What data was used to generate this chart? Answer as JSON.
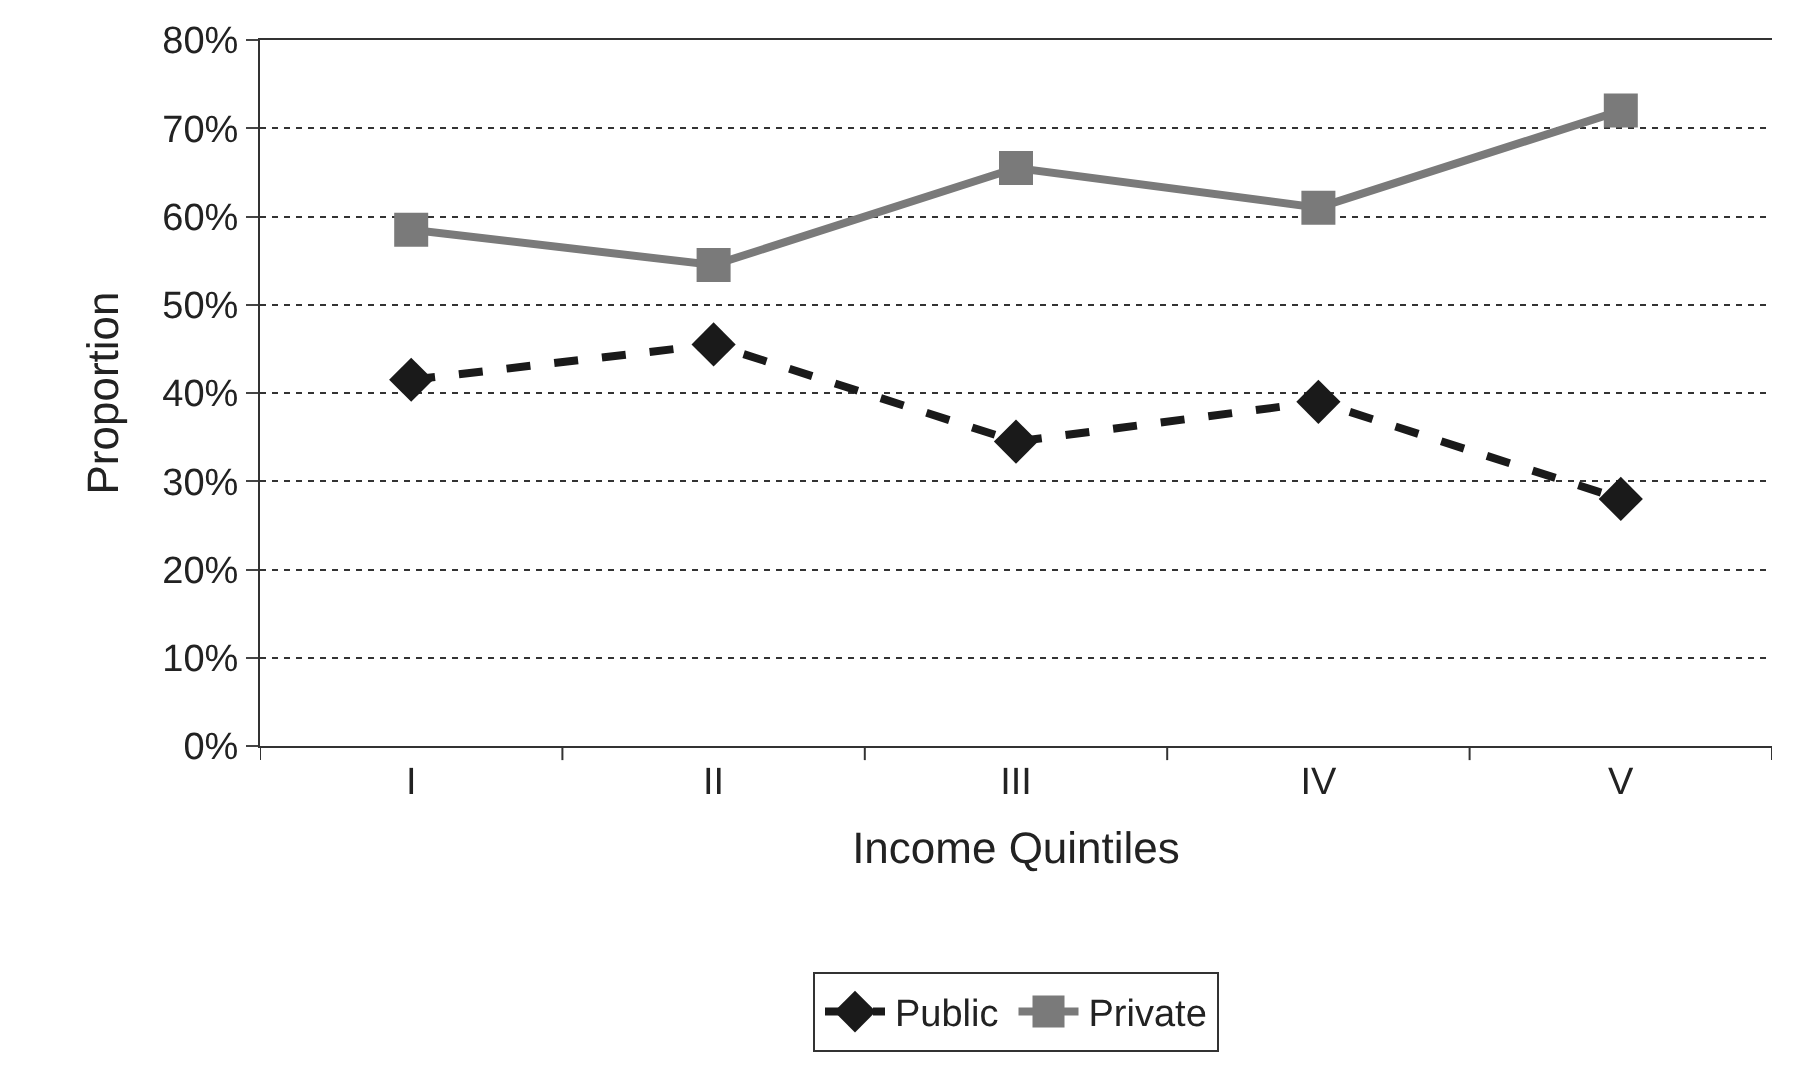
{
  "chart_data": {
    "type": "line",
    "xlabel": "Income Quintiles",
    "ylabel": "Proportion",
    "categories": [
      "I",
      "II",
      "III",
      "IV",
      "V"
    ],
    "series": [
      {
        "name": "Public",
        "color": "#1a1a1a",
        "values": [
          41.5,
          45.5,
          34.5,
          39,
          28
        ],
        "marker": "diamond",
        "line_style": "dashed"
      },
      {
        "name": "Private",
        "color": "#7a7a7a",
        "values": [
          58.5,
          54.5,
          65.5,
          61,
          72
        ],
        "marker": "square",
        "line_style": "solid"
      }
    ],
    "ylim": [
      0,
      80
    ],
    "yticks": [
      {
        "value": 0,
        "label": "0%"
      },
      {
        "value": 10,
        "label": "10%"
      },
      {
        "value": 20,
        "label": "20%"
      },
      {
        "value": 30,
        "label": "30%"
      },
      {
        "value": 40,
        "label": "40%"
      },
      {
        "value": 50,
        "label": "50%"
      },
      {
        "value": 60,
        "label": "60%"
      },
      {
        "value": 70,
        "label": "70%"
      },
      {
        "value": 80,
        "label": "80%"
      }
    ],
    "grid": "y",
    "legend": "bottom"
  }
}
